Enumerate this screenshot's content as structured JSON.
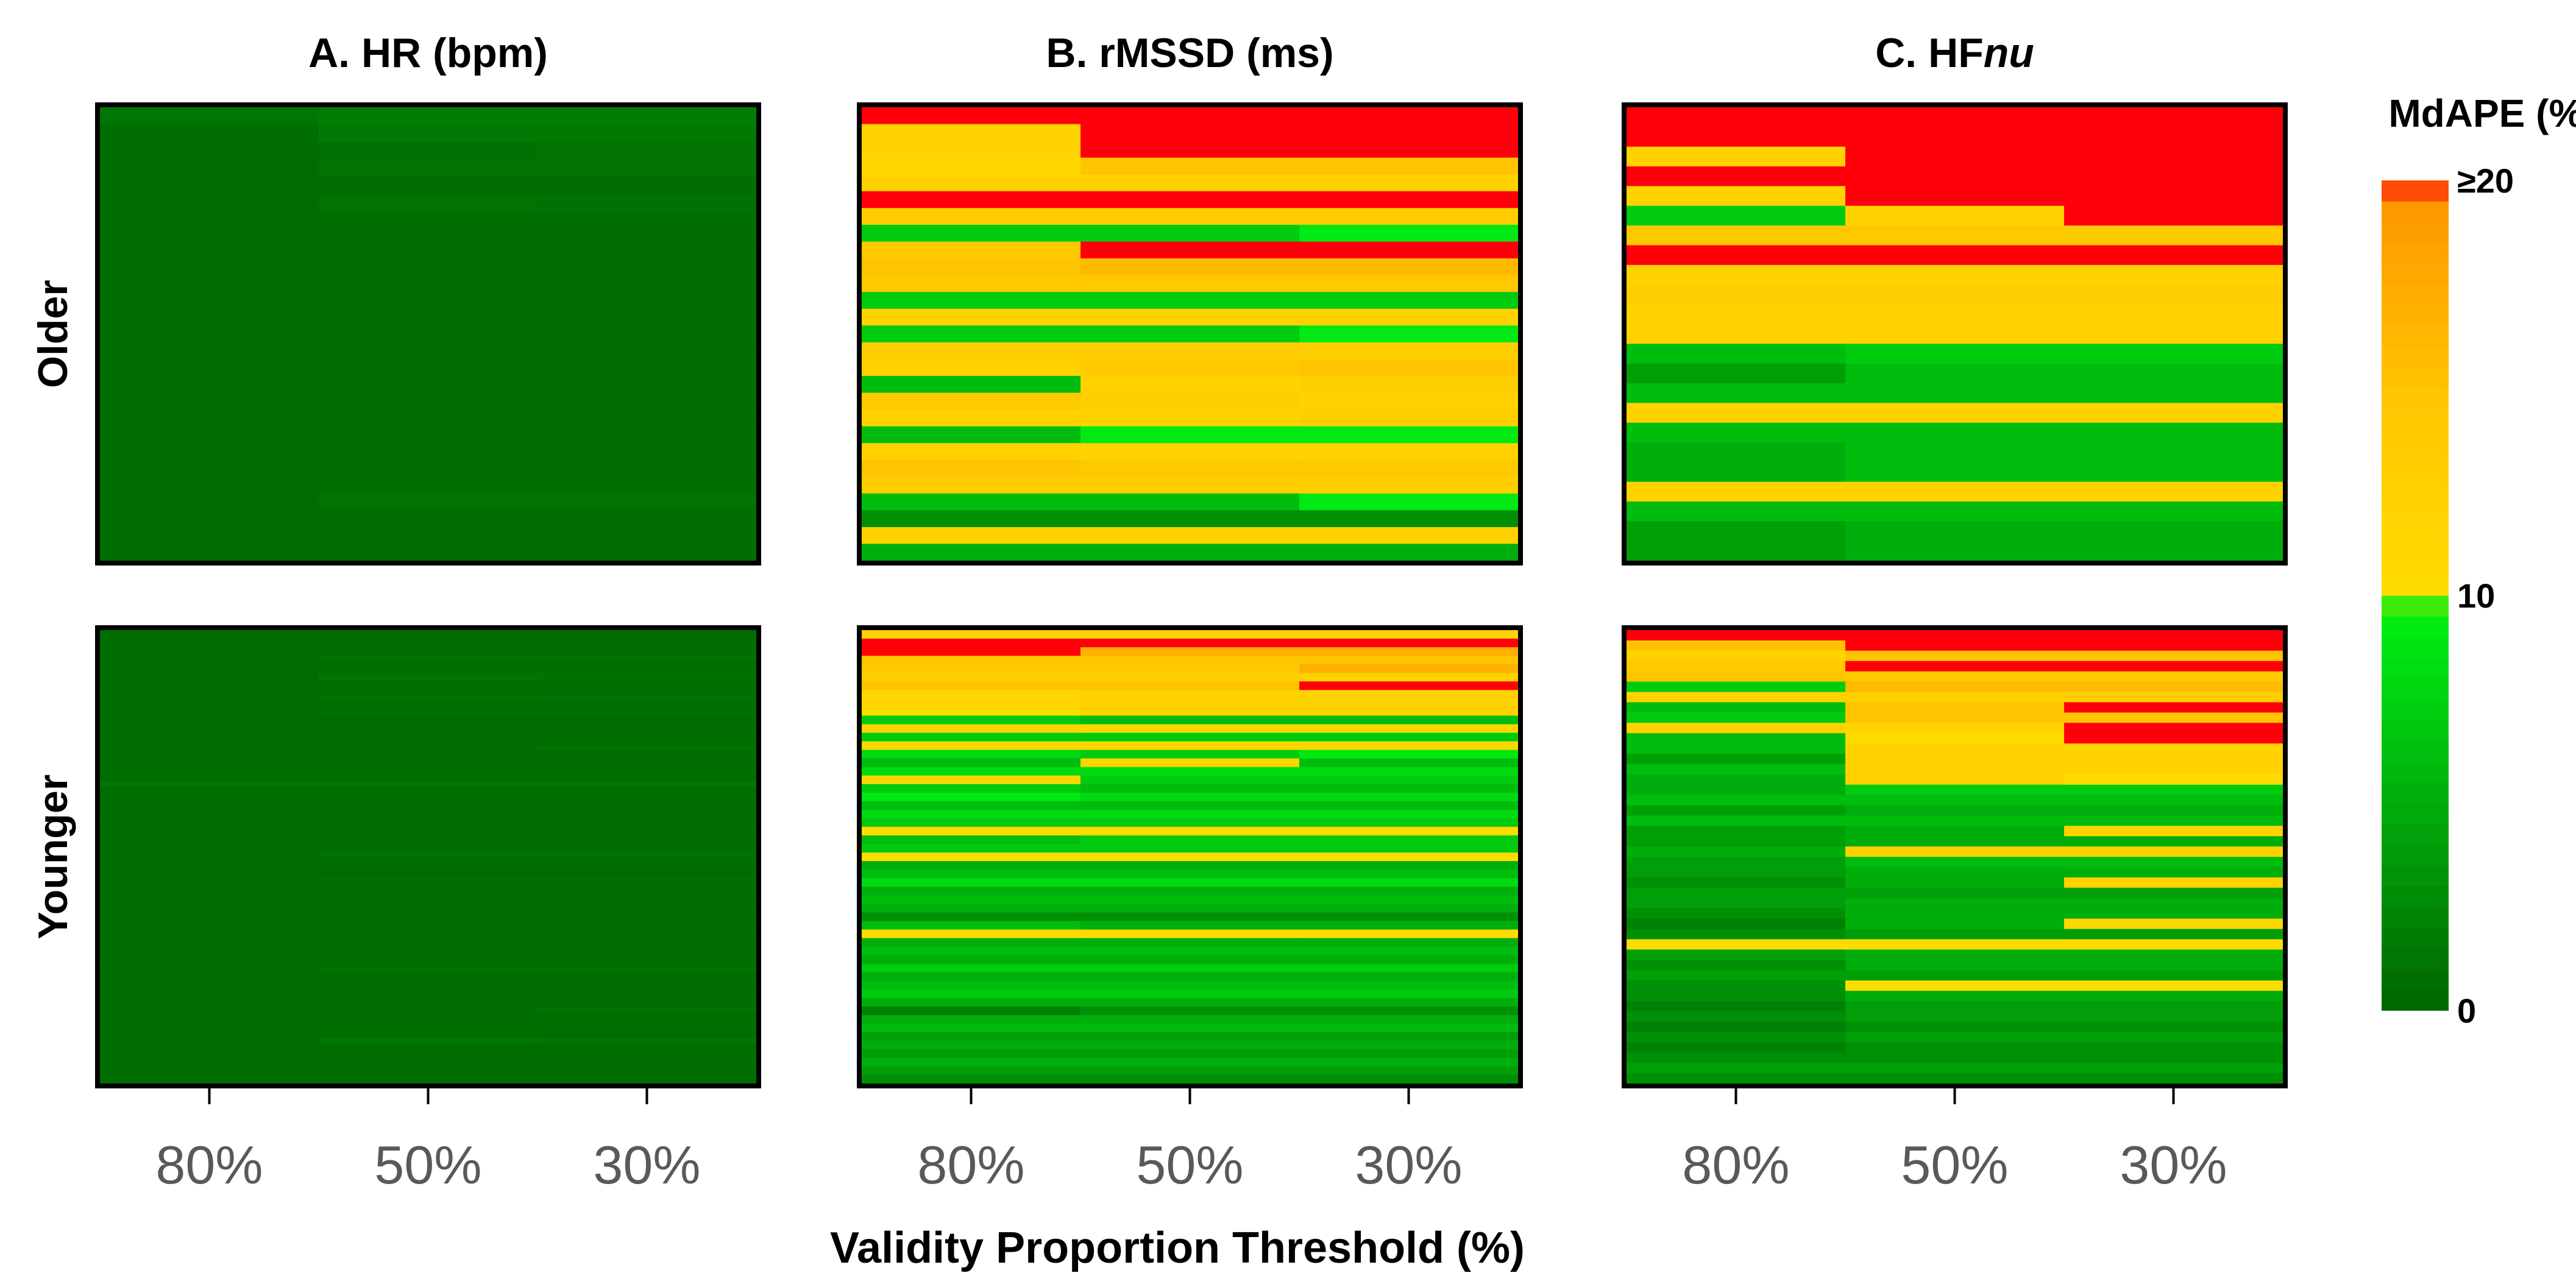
{
  "chart_data": {
    "type": "heatmap",
    "xlabel": "Validity Proportion Threshold (%)",
    "x_categories": [
      "80%",
      "50%",
      "30%"
    ],
    "row_groups": [
      "Older",
      "Younger"
    ],
    "colorbar": {
      "title": "MdAPE (%)",
      "ticks": [
        "0",
        "10",
        "≥20"
      ],
      "range": [
        0,
        20
      ]
    },
    "panels": [
      {
        "title_prefix": "A. HR (bpm)",
        "title_italic": "",
        "older": [
          [
            1.2,
            1.7,
            1.7
          ],
          [
            0.6,
            1.5,
            1.5
          ],
          [
            0.6,
            0.9,
            1.0
          ],
          [
            0.6,
            1.0,
            1.0
          ],
          [
            0.6,
            0.6,
            0.6
          ],
          [
            0.6,
            1.1,
            0.9
          ],
          [
            0.6,
            0.7,
            0.7
          ],
          [
            0.6,
            0.6,
            0.6
          ],
          [
            0.6,
            0.6,
            0.6
          ],
          [
            0.6,
            0.6,
            0.6
          ],
          [
            0.6,
            0.6,
            0.6
          ],
          [
            0.6,
            0.6,
            0.6
          ],
          [
            0.6,
            0.6,
            0.6
          ],
          [
            0.6,
            0.6,
            0.6
          ],
          [
            0.6,
            0.6,
            0.6
          ],
          [
            0.6,
            0.6,
            0.6
          ],
          [
            0.6,
            0.6,
            0.6
          ],
          [
            0.6,
            0.6,
            0.6
          ],
          [
            0.6,
            0.6,
            0.6
          ],
          [
            0.6,
            0.6,
            0.6
          ],
          [
            0.6,
            0.6,
            0.6
          ],
          [
            0.6,
            0.6,
            0.6
          ],
          [
            0.6,
            1.1,
            1.0
          ],
          [
            0.6,
            0.7,
            0.7
          ],
          [
            0.6,
            0.6,
            0.6
          ],
          [
            0.6,
            0.6,
            0.6
          ]
        ],
        "younger": [
          [
            0.6,
            0.6,
            0.6
          ],
          [
            0.6,
            0.6,
            0.6
          ],
          [
            0.6,
            0.6,
            0.6
          ],
          [
            0.6,
            0.6,
            0.6
          ],
          [
            0.6,
            0.6,
            0.6
          ],
          [
            0.6,
            1.0,
            1.0
          ],
          [
            0.6,
            0.6,
            0.6
          ],
          [
            0.6,
            0.6,
            0.6
          ],
          [
            0.6,
            0.9,
            0.9
          ],
          [
            0.6,
            1.2,
            1.1
          ],
          [
            0.6,
            0.6,
            0.6
          ],
          [
            0.6,
            0.6,
            0.6
          ],
          [
            0.6,
            0.6,
            0.6
          ],
          [
            0.6,
            1.0,
            0.9
          ],
          [
            0.6,
            0.6,
            0.6
          ],
          [
            0.6,
            0.6,
            0.6
          ],
          [
            0.6,
            0.8,
            0.8
          ],
          [
            0.6,
            0.6,
            0.6
          ],
          [
            0.6,
            0.6,
            0.6
          ],
          [
            0.6,
            0.6,
            0.6
          ],
          [
            0.6,
            0.6,
            0.6
          ],
          [
            0.6,
            0.6,
            0.6
          ],
          [
            0.6,
            0.6,
            0.6
          ],
          [
            0.6,
            0.6,
            1.0
          ],
          [
            0.6,
            0.6,
            0.6
          ],
          [
            0.6,
            0.6,
            0.6
          ],
          [
            0.6,
            0.6,
            0.6
          ],
          [
            0.6,
            0.6,
            0.6
          ],
          [
            0.6,
            0.6,
            0.6
          ],
          [
            0.6,
            0.6,
            0.6
          ],
          [
            1.3,
            1.3,
            1.3
          ],
          [
            0.6,
            0.6,
            0.6
          ],
          [
            0.6,
            0.6,
            0.6
          ],
          [
            0.6,
            0.6,
            0.6
          ],
          [
            0.6,
            0.6,
            0.6
          ],
          [
            0.6,
            0.6,
            0.6
          ],
          [
            0.6,
            0.6,
            0.6
          ],
          [
            0.6,
            0.6,
            0.6
          ],
          [
            0.6,
            0.6,
            0.6
          ],
          [
            0.6,
            0.6,
            0.6
          ],
          [
            0.6,
            0.6,
            0.6
          ],
          [
            0.6,
            0.6,
            0.6
          ],
          [
            0.6,
            0.6,
            0.6
          ],
          [
            0.6,
            0.6,
            0.6
          ],
          [
            0.6,
            0.9,
            0.9
          ],
          [
            0.6,
            0.6,
            0.6
          ],
          [
            0.6,
            0.6,
            0.6
          ],
          [
            0.6,
            0.6,
            0.6
          ],
          [
            0.6,
            0.6,
            0.6
          ],
          [
            0.6,
            0.9,
            0.9
          ],
          [
            0.6,
            0.6,
            0.6
          ],
          [
            0.6,
            0.6,
            0.6
          ],
          [
            0.6,
            0.6,
            0.6
          ],
          [
            0.6,
            0.6,
            0.6
          ],
          [
            0.6,
            0.6,
            0.6
          ],
          [
            0.6,
            0.6,
            0.6
          ],
          [
            0.6,
            0.6,
            0.6
          ],
          [
            0.6,
            0.6,
            0.6
          ],
          [
            0.6,
            0.6,
            0.6
          ],
          [
            0.6,
            0.6,
            0.6
          ],
          [
            0.6,
            0.6,
            0.6
          ],
          [
            0.6,
            0.6,
            0.6
          ],
          [
            0.6,
            0.6,
            0.6
          ],
          [
            0.6,
            0.6,
            0.6
          ],
          [
            0.6,
            0.6,
            0.6
          ],
          [
            0.6,
            0.6,
            0.6
          ],
          [
            0.6,
            0.6,
            0.6
          ],
          [
            0.6,
            1.1,
            1.0
          ],
          [
            0.6,
            0.6,
            0.6
          ],
          [
            0.6,
            0.6,
            0.6
          ],
          [
            0.6,
            0.6,
            0.6
          ],
          [
            0.6,
            0.6,
            0.6
          ],
          [
            0.6,
            0.6,
            0.6
          ],
          [
            0.6,
            0.6,
            0.6
          ],
          [
            0.6,
            0.6,
            0.6
          ],
          [
            0.6,
            0.6,
            1.1
          ],
          [
            0.6,
            0.6,
            0.6
          ],
          [
            0.6,
            0.6,
            0.6
          ],
          [
            0.6,
            0.6,
            0.6
          ],
          [
            0.6,
            0.6,
            0.6
          ],
          [
            0.6,
            0.6,
            0.6
          ],
          [
            0.6,
            1.4,
            1.3
          ],
          [
            0.6,
            0.6,
            0.6
          ],
          [
            0.6,
            0.6,
            0.6
          ],
          [
            0.6,
            0.6,
            0.6
          ],
          [
            0.6,
            0.6,
            0.6
          ],
          [
            0.6,
            0.6,
            0.6
          ],
          [
            0.6,
            0.6,
            0.6
          ],
          [
            0.6,
            0.6,
            0.6
          ],
          [
            0.6,
            0.6,
            0.6
          ]
        ]
      },
      {
        "title_prefix": "B. rMSSD (ms)",
        "title_italic": "",
        "older": [
          [
            20,
            20,
            20
          ],
          [
            12,
            20,
            20
          ],
          [
            12,
            20,
            20
          ],
          [
            11,
            15,
            15
          ],
          [
            12,
            12,
            12
          ],
          [
            20,
            20,
            20
          ],
          [
            13,
            13,
            13
          ],
          [
            7,
            7,
            9
          ],
          [
            14,
            20,
            20
          ],
          [
            15,
            16,
            16
          ],
          [
            14,
            14,
            14
          ],
          [
            7,
            7,
            7
          ],
          [
            12,
            12,
            12
          ],
          [
            7,
            7,
            9
          ],
          [
            13,
            13,
            13
          ],
          [
            12,
            14,
            15
          ],
          [
            6,
            12,
            13
          ],
          [
            14,
            13,
            12
          ],
          [
            12,
            12,
            13
          ],
          [
            6,
            9,
            9
          ],
          [
            12,
            12,
            12
          ],
          [
            15,
            14,
            14
          ],
          [
            13,
            13,
            13
          ],
          [
            6,
            6,
            9
          ],
          [
            3,
            3,
            3
          ],
          [
            12,
            12,
            12
          ],
          [
            5,
            5,
            5
          ]
        ],
        "younger": [
          [
            12,
            12,
            12
          ],
          [
            20,
            20,
            20
          ],
          [
            20,
            17,
            17
          ],
          [
            15,
            15,
            15
          ],
          [
            14,
            14,
            17
          ],
          [
            13,
            13,
            12
          ],
          [
            15,
            15,
            20
          ],
          [
            11,
            12,
            12
          ],
          [
            12,
            12,
            12
          ],
          [
            10,
            12,
            12
          ],
          [
            7,
            6,
            6
          ],
          [
            12,
            11,
            11
          ],
          [
            7,
            7,
            7
          ],
          [
            11,
            11,
            11
          ],
          [
            8,
            7,
            9
          ],
          [
            6,
            11,
            6
          ],
          [
            8,
            8,
            8
          ],
          [
            11,
            7,
            7
          ],
          [
            7,
            6,
            6
          ],
          [
            9,
            8,
            8
          ],
          [
            6,
            6,
            6
          ],
          [
            8,
            8,
            8
          ],
          [
            7,
            7,
            7
          ],
          [
            10,
            10,
            10
          ],
          [
            6,
            7,
            7
          ],
          [
            7,
            7,
            7
          ],
          [
            10,
            10,
            10
          ],
          [
            5,
            5,
            5
          ],
          [
            6,
            6,
            6
          ],
          [
            8,
            8,
            8
          ],
          [
            5,
            5,
            5
          ],
          [
            6,
            6,
            6
          ],
          [
            5,
            5,
            5
          ],
          [
            3,
            3,
            3
          ],
          [
            6,
            5,
            5
          ],
          [
            10,
            10,
            10
          ],
          [
            5,
            5,
            5
          ],
          [
            6,
            6,
            6
          ],
          [
            5,
            5,
            5
          ],
          [
            7,
            7,
            7
          ],
          [
            5,
            5,
            5
          ],
          [
            6,
            6,
            6
          ],
          [
            7,
            7,
            7
          ],
          [
            5,
            5,
            5
          ],
          [
            2,
            3,
            3
          ],
          [
            5,
            5,
            5
          ],
          [
            6,
            6,
            6
          ],
          [
            4,
            4,
            4
          ],
          [
            5,
            5,
            5
          ],
          [
            4,
            4,
            4
          ],
          [
            5,
            5,
            5
          ],
          [
            4,
            4,
            4
          ],
          [
            3,
            3,
            3
          ]
        ]
      },
      {
        "title_prefix": "C. HF",
        "title_italic": "nu",
        "older": [
          [
            20,
            20,
            20
          ],
          [
            20,
            20,
            20
          ],
          [
            12,
            20,
            20
          ],
          [
            20,
            20,
            20
          ],
          [
            12,
            20,
            20
          ],
          [
            7,
            12,
            20
          ],
          [
            14,
            14,
            14
          ],
          [
            20,
            20,
            20
          ],
          [
            12,
            12,
            12
          ],
          [
            13,
            13,
            13
          ],
          [
            12,
            12,
            12
          ],
          [
            12,
            12,
            12
          ],
          [
            6,
            7,
            7
          ],
          [
            4,
            6,
            6
          ],
          [
            6,
            6,
            6
          ],
          [
            12,
            12,
            12
          ],
          [
            6,
            6,
            6
          ],
          [
            5,
            6,
            6
          ],
          [
            5,
            6,
            6
          ],
          [
            12,
            12,
            12
          ],
          [
            6,
            6,
            6
          ],
          [
            4,
            5,
            5
          ],
          [
            4,
            5,
            5
          ]
        ],
        "younger": [
          [
            20,
            20,
            20
          ],
          [
            15,
            20,
            20
          ],
          [
            12,
            15,
            15
          ],
          [
            14,
            20,
            20
          ],
          [
            15,
            14,
            14
          ],
          [
            7,
            16,
            16
          ],
          [
            12,
            13,
            13
          ],
          [
            6,
            15,
            20
          ],
          [
            7,
            15,
            15
          ],
          [
            12,
            12,
            20
          ],
          [
            6,
            10,
            20
          ],
          [
            6,
            12,
            12
          ],
          [
            4,
            12,
            12
          ],
          [
            6,
            12,
            12
          ],
          [
            5,
            12,
            10
          ],
          [
            5,
            7,
            7
          ],
          [
            6,
            6,
            6
          ],
          [
            4,
            5,
            5
          ],
          [
            6,
            6,
            6
          ],
          [
            4,
            5,
            12
          ],
          [
            4,
            5,
            5
          ],
          [
            5,
            12,
            12
          ],
          [
            4,
            6,
            6
          ],
          [
            4,
            5,
            5
          ],
          [
            3,
            5,
            12
          ],
          [
            4,
            4,
            4
          ],
          [
            4,
            5,
            5
          ],
          [
            3,
            5,
            5
          ],
          [
            2,
            5,
            11
          ],
          [
            3,
            4,
            4
          ],
          [
            10,
            10,
            10
          ],
          [
            4,
            5,
            5
          ],
          [
            3,
            5,
            5
          ],
          [
            4,
            4,
            4
          ],
          [
            3,
            10,
            10
          ],
          [
            3,
            5,
            5
          ],
          [
            2,
            4,
            4
          ],
          [
            3,
            4,
            4
          ],
          [
            2,
            3,
            3
          ],
          [
            3,
            4,
            4
          ],
          [
            2,
            3,
            3
          ],
          [
            3,
            3,
            3
          ],
          [
            4,
            4,
            4
          ],
          [
            3,
            3,
            3
          ]
        ]
      }
    ]
  }
}
